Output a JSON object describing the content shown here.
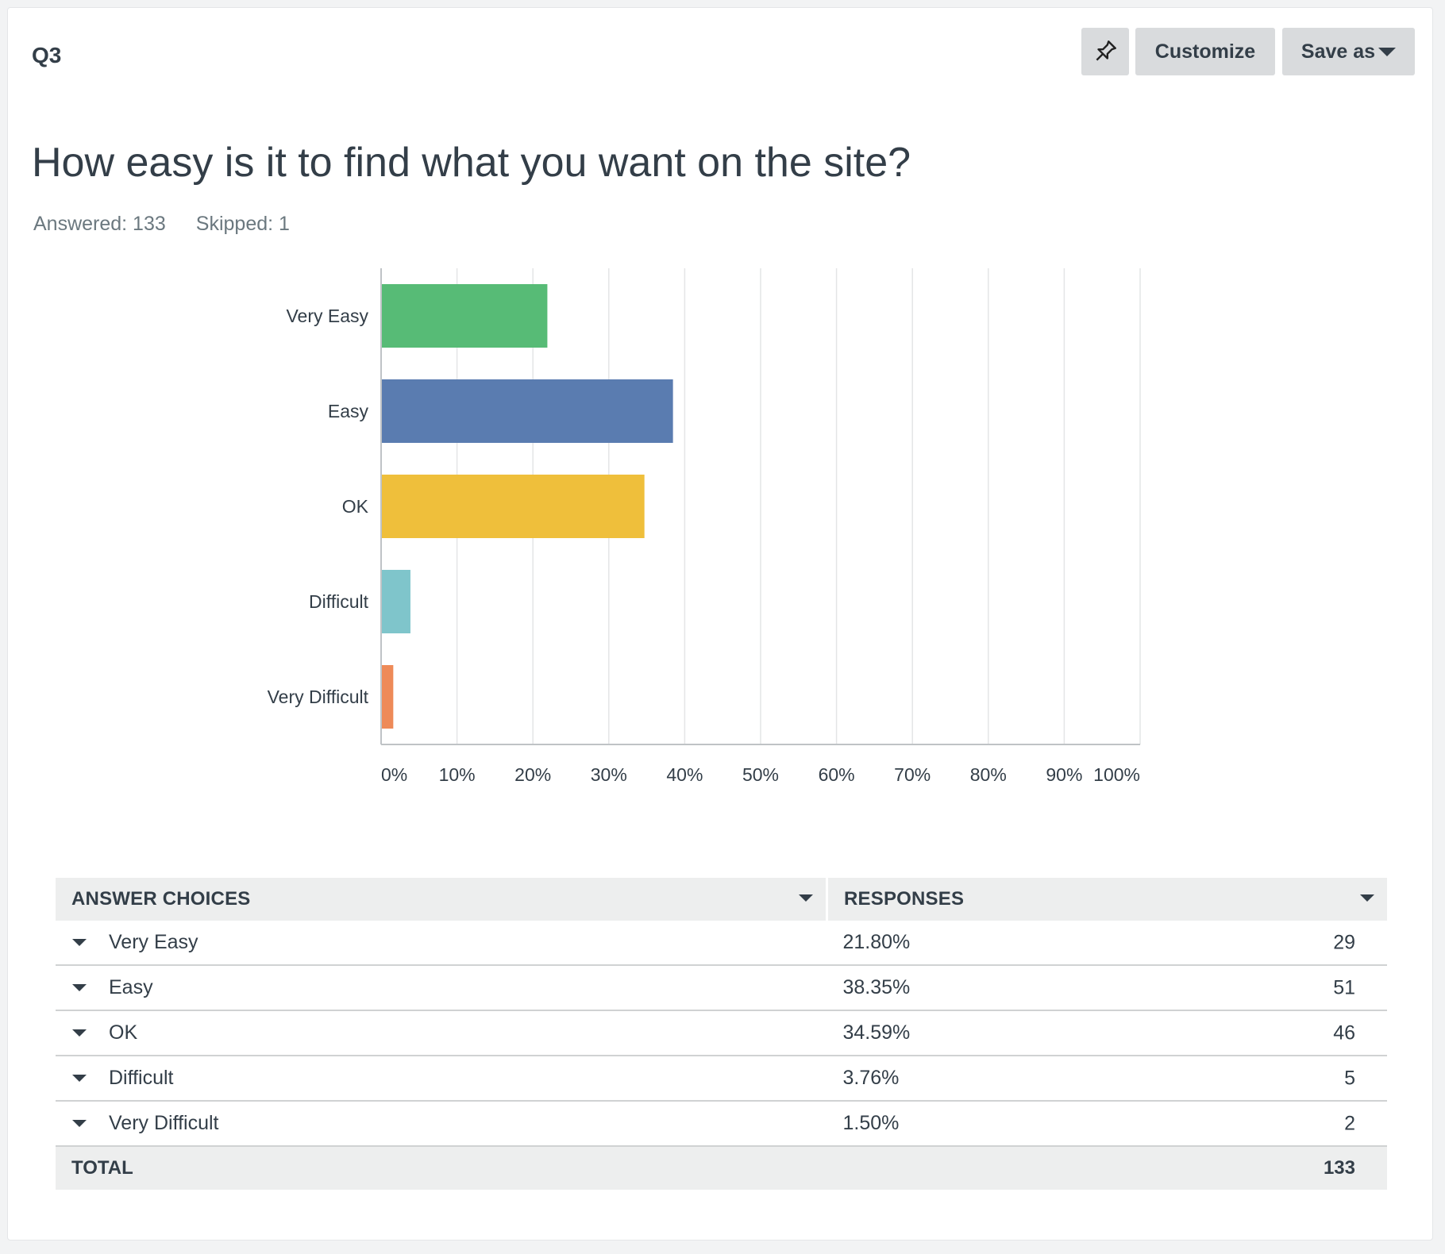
{
  "question": {
    "number": "Q3",
    "title": "How easy is it to find what you want on the site?",
    "answered": "Answered: 133",
    "skipped": "Skipped: 1"
  },
  "toolbar": {
    "pin_icon": "pin-icon",
    "customize_label": "Customize",
    "saveas_label": "Save as"
  },
  "chart_data": {
    "type": "bar",
    "orientation": "horizontal",
    "categories": [
      "Very Easy",
      "Easy",
      "OK",
      "Difficult",
      "Very Difficult"
    ],
    "values": [
      21.8,
      38.35,
      34.59,
      3.76,
      1.5
    ],
    "colors": [
      "#57bb76",
      "#5a7cb0",
      "#efbf3b",
      "#7fc5cb",
      "#ee8a58"
    ],
    "xticks": [
      "0%",
      "10%",
      "20%",
      "30%",
      "40%",
      "50%",
      "60%",
      "70%",
      "80%",
      "90%",
      "100%"
    ],
    "xlim": [
      0,
      100
    ],
    "grid": true
  },
  "table": {
    "headers": {
      "choices": "ANSWER CHOICES",
      "responses": "RESPONSES"
    },
    "rows": [
      {
        "choice": "Very Easy",
        "pct": "21.80%",
        "count": "29"
      },
      {
        "choice": "Easy",
        "pct": "38.35%",
        "count": "51"
      },
      {
        "choice": "OK",
        "pct": "34.59%",
        "count": "46"
      },
      {
        "choice": "Difficult",
        "pct": "3.76%",
        "count": "5"
      },
      {
        "choice": "Very Difficult",
        "pct": "1.50%",
        "count": "2"
      }
    ],
    "total_label": "TOTAL",
    "total_value": "133"
  }
}
